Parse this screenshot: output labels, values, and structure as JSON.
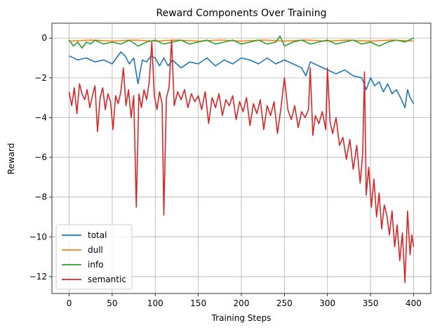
{
  "chart_data": {
    "type": "line",
    "title": "Reward Components Over Training",
    "xlabel": "Training Steps",
    "ylabel": "Reward",
    "xlim": [
      -20,
      420
    ],
    "ylim": [
      -12.85,
      0.75
    ],
    "xticks": [
      0,
      50,
      100,
      150,
      200,
      250,
      300,
      350,
      400
    ],
    "yticks": [
      -12,
      -10,
      -8,
      -6,
      -4,
      -2,
      0
    ],
    "grid": true,
    "legend_position": "lower-left",
    "series": [
      {
        "name": "total",
        "color": "#1f77b4",
        "points": [
          [
            0,
            -0.9
          ],
          [
            10,
            -1.1
          ],
          [
            20,
            -1.0
          ],
          [
            30,
            -1.2
          ],
          [
            40,
            -1.1
          ],
          [
            50,
            -1.3
          ],
          [
            55,
            -1.0
          ],
          [
            60,
            -0.7
          ],
          [
            65,
            -0.9
          ],
          [
            70,
            -1.3
          ],
          [
            75,
            -1.0
          ],
          [
            80,
            -2.3
          ],
          [
            85,
            -1.1
          ],
          [
            90,
            -1.2
          ],
          [
            95,
            -0.9
          ],
          [
            100,
            -1.0
          ],
          [
            105,
            -1.4
          ],
          [
            110,
            -1.0
          ],
          [
            115,
            -1.4
          ],
          [
            120,
            -1.1
          ],
          [
            130,
            -1.5
          ],
          [
            140,
            -1.2
          ],
          [
            150,
            -1.3
          ],
          [
            160,
            -1.0
          ],
          [
            170,
            -1.4
          ],
          [
            180,
            -1.1
          ],
          [
            190,
            -1.3
          ],
          [
            200,
            -1.0
          ],
          [
            210,
            -1.1
          ],
          [
            220,
            -1.3
          ],
          [
            230,
            -1.0
          ],
          [
            240,
            -1.3
          ],
          [
            250,
            -1.1
          ],
          [
            260,
            -1.3
          ],
          [
            270,
            -1.5
          ],
          [
            275,
            -1.9
          ],
          [
            280,
            -1.2
          ],
          [
            290,
            -1.4
          ],
          [
            300,
            -1.6
          ],
          [
            310,
            -1.8
          ],
          [
            320,
            -1.6
          ],
          [
            330,
            -1.9
          ],
          [
            340,
            -2.0
          ],
          [
            345,
            -2.6
          ],
          [
            350,
            -2.0
          ],
          [
            355,
            -2.4
          ],
          [
            360,
            -2.2
          ],
          [
            365,
            -2.7
          ],
          [
            370,
            -2.3
          ],
          [
            375,
            -2.8
          ],
          [
            380,
            -2.6
          ],
          [
            385,
            -3.0
          ],
          [
            390,
            -3.5
          ],
          [
            393,
            -2.6
          ],
          [
            396,
            -3.0
          ],
          [
            400,
            -3.3
          ]
        ]
      },
      {
        "name": "dull",
        "color": "#ff7f0e",
        "points": [
          [
            0,
            -0.15
          ],
          [
            25,
            -0.1
          ],
          [
            50,
            -0.15
          ],
          [
            75,
            -0.1
          ],
          [
            100,
            -0.15
          ],
          [
            125,
            -0.1
          ],
          [
            150,
            -0.15
          ],
          [
            175,
            -0.1
          ],
          [
            200,
            -0.15
          ],
          [
            225,
            -0.1
          ],
          [
            250,
            -0.15
          ],
          [
            275,
            -0.1
          ],
          [
            300,
            -0.15
          ],
          [
            325,
            -0.1
          ],
          [
            350,
            -0.15
          ],
          [
            375,
            -0.1
          ],
          [
            400,
            -0.15
          ]
        ]
      },
      {
        "name": "info",
        "color": "#2ca02c",
        "points": [
          [
            0,
            -0.1
          ],
          [
            5,
            -0.4
          ],
          [
            10,
            -0.2
          ],
          [
            15,
            -0.5
          ],
          [
            20,
            -0.2
          ],
          [
            25,
            -0.3
          ],
          [
            30,
            -0.1
          ],
          [
            40,
            -0.3
          ],
          [
            50,
            -0.2
          ],
          [
            60,
            -0.3
          ],
          [
            70,
            -0.1
          ],
          [
            80,
            -0.4
          ],
          [
            90,
            -0.2
          ],
          [
            100,
            -0.1
          ],
          [
            110,
            -0.3
          ],
          [
            120,
            -0.2
          ],
          [
            130,
            -0.1
          ],
          [
            140,
            -0.3
          ],
          [
            150,
            -0.2
          ],
          [
            160,
            -0.1
          ],
          [
            170,
            -0.3
          ],
          [
            180,
            -0.2
          ],
          [
            190,
            -0.1
          ],
          [
            200,
            -0.3
          ],
          [
            210,
            -0.2
          ],
          [
            220,
            -0.1
          ],
          [
            230,
            -0.3
          ],
          [
            240,
            -0.2
          ],
          [
            245,
            0.1
          ],
          [
            250,
            -0.4
          ],
          [
            260,
            -0.2
          ],
          [
            270,
            -0.1
          ],
          [
            280,
            -0.3
          ],
          [
            290,
            -0.2
          ],
          [
            300,
            -0.1
          ],
          [
            310,
            -0.3
          ],
          [
            320,
            -0.2
          ],
          [
            330,
            -0.1
          ],
          [
            340,
            -0.3
          ],
          [
            350,
            -0.2
          ],
          [
            360,
            -0.4
          ],
          [
            370,
            -0.2
          ],
          [
            380,
            -0.1
          ],
          [
            390,
            -0.2
          ],
          [
            400,
            0.0
          ]
        ]
      },
      {
        "name": "semantic",
        "color": "#d62728",
        "points": [
          [
            0,
            -2.7
          ],
          [
            3,
            -3.4
          ],
          [
            6,
            -2.5
          ],
          [
            9,
            -3.8
          ],
          [
            12,
            -2.3
          ],
          [
            15,
            -2.8
          ],
          [
            18,
            -3.1
          ],
          [
            21,
            -2.6
          ],
          [
            24,
            -3.5
          ],
          [
            27,
            -2.9
          ],
          [
            30,
            -2.4
          ],
          [
            33,
            -4.7
          ],
          [
            36,
            -3.0
          ],
          [
            39,
            -2.5
          ],
          [
            42,
            -3.6
          ],
          [
            45,
            -2.8
          ],
          [
            48,
            -3.2
          ],
          [
            51,
            -4.6
          ],
          [
            54,
            -2.9
          ],
          [
            57,
            -3.3
          ],
          [
            60,
            -2.7
          ],
          [
            63,
            -1.5
          ],
          [
            66,
            -3.4
          ],
          [
            69,
            -2.6
          ],
          [
            72,
            -4.0
          ],
          [
            75,
            -2.9
          ],
          [
            78,
            -8.5
          ],
          [
            81,
            -2.8
          ],
          [
            84,
            -3.5
          ],
          [
            87,
            -2.6
          ],
          [
            90,
            -3.1
          ],
          [
            93,
            -2.2
          ],
          [
            96,
            -0.2
          ],
          [
            99,
            -2.9
          ],
          [
            102,
            -3.6
          ],
          [
            105,
            -2.7
          ],
          [
            108,
            -3.3
          ],
          [
            110,
            -8.9
          ],
          [
            113,
            -3.0
          ],
          [
            116,
            -2.5
          ],
          [
            119,
            -0.1
          ],
          [
            122,
            -3.4
          ],
          [
            126,
            -2.7
          ],
          [
            130,
            -3.1
          ],
          [
            134,
            -2.6
          ],
          [
            138,
            -3.5
          ],
          [
            142,
            -2.8
          ],
          [
            146,
            -3.2
          ],
          [
            150,
            -2.9
          ],
          [
            154,
            -3.6
          ],
          [
            158,
            -2.7
          ],
          [
            162,
            -4.3
          ],
          [
            166,
            -3.0
          ],
          [
            170,
            -3.5
          ],
          [
            174,
            -2.8
          ],
          [
            178,
            -3.9
          ],
          [
            182,
            -3.1
          ],
          [
            186,
            -3.4
          ],
          [
            190,
            -2.9
          ],
          [
            194,
            -4.1
          ],
          [
            198,
            -3.2
          ],
          [
            202,
            -3.7
          ],
          [
            206,
            -3.0
          ],
          [
            210,
            -4.4
          ],
          [
            214,
            -3.3
          ],
          [
            218,
            -3.8
          ],
          [
            222,
            -3.1
          ],
          [
            226,
            -4.6
          ],
          [
            230,
            -3.4
          ],
          [
            234,
            -3.9
          ],
          [
            238,
            -3.2
          ],
          [
            242,
            -4.8
          ],
          [
            246,
            -3.5
          ],
          [
            250,
            -2.0
          ],
          [
            254,
            -3.6
          ],
          [
            258,
            -4.1
          ],
          [
            262,
            -3.4
          ],
          [
            266,
            -4.5
          ],
          [
            270,
            -3.7
          ],
          [
            274,
            -4.0
          ],
          [
            278,
            -3.6
          ],
          [
            280,
            -1.5
          ],
          [
            283,
            -4.9
          ],
          [
            286,
            -3.9
          ],
          [
            290,
            -4.3
          ],
          [
            294,
            -3.7
          ],
          [
            298,
            -4.6
          ],
          [
            300,
            -1.5
          ],
          [
            303,
            -4.2
          ],
          [
            306,
            -4.8
          ],
          [
            310,
            -4.0
          ],
          [
            314,
            -5.4
          ],
          [
            318,
            -5.0
          ],
          [
            322,
            -6.1
          ],
          [
            326,
            -5.1
          ],
          [
            330,
            -6.6
          ],
          [
            334,
            -5.4
          ],
          [
            338,
            -7.3
          ],
          [
            341,
            -5.8
          ],
          [
            343,
            -1.7
          ],
          [
            345,
            -7.9
          ],
          [
            348,
            -6.5
          ],
          [
            351,
            -8.5
          ],
          [
            354,
            -7.1
          ],
          [
            357,
            -9.0
          ],
          [
            360,
            -7.8
          ],
          [
            363,
            -9.6
          ],
          [
            366,
            -8.4
          ],
          [
            369,
            -8.9
          ],
          [
            372,
            -9.9
          ],
          [
            375,
            -8.7
          ],
          [
            378,
            -10.5
          ],
          [
            381,
            -9.4
          ],
          [
            384,
            -11.2
          ],
          [
            387,
            -9.8
          ],
          [
            390,
            -12.3
          ],
          [
            393,
            -8.7
          ],
          [
            396,
            -10.9
          ],
          [
            398,
            -9.9
          ],
          [
            400,
            -10.5
          ]
        ]
      }
    ]
  }
}
